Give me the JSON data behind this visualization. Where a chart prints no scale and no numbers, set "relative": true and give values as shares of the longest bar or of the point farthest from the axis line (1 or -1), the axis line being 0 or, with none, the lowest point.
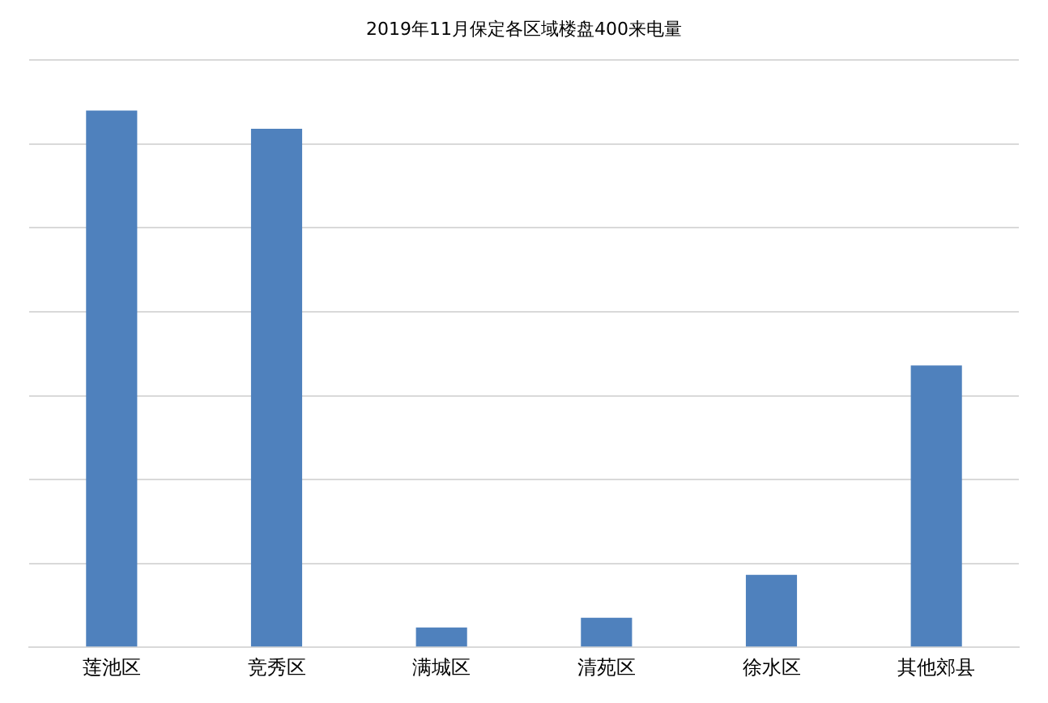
{
  "chart_data": {
    "type": "bar",
    "title": "2019年11月保定各区域楼盘400来电量",
    "categories": [
      "莲池区",
      "竞秀区",
      "满城区",
      "清苑区",
      "徐水区",
      "其他郊县"
    ],
    "values": [
      1,
      0.966,
      0.037,
      0.055,
      0.135,
      0.525
    ],
    "color": "#4f81bd",
    "relative": true,
    "grid": "y",
    "legend": false
  }
}
